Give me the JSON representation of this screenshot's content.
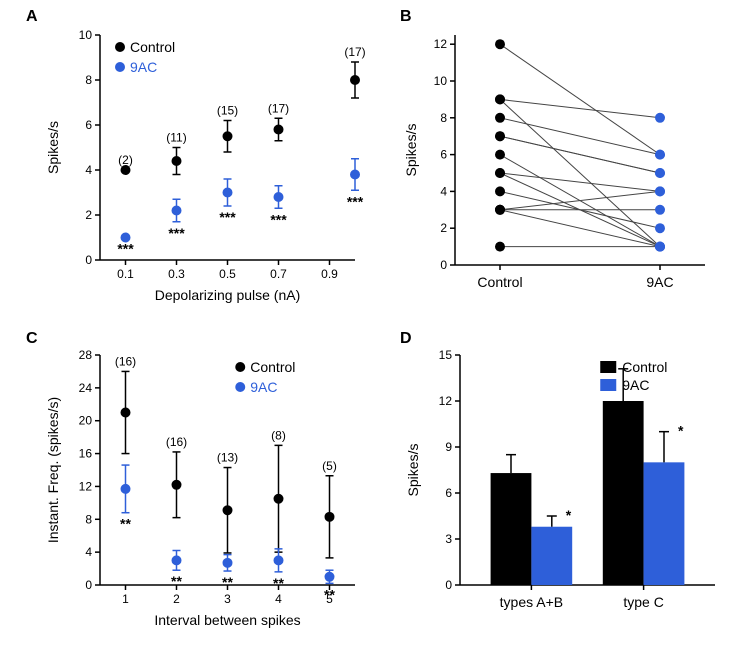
{
  "colors": {
    "control": "#000000",
    "treat": "#2e5fd9",
    "bg": "#ffffff",
    "axis": "#000000",
    "bar_control": "#000000",
    "bar_treat": "#2e5fd9",
    "line_gray": "#444444"
  },
  "legend": {
    "control": "Control",
    "treat": "9AC"
  },
  "panelA": {
    "label": "A",
    "type": "scatter-errorbar",
    "xlabel": "Depolarizing pulse (nA)",
    "ylabel": "Spikes/s",
    "xticks": [
      0.1,
      0.3,
      0.5,
      0.7,
      0.9
    ],
    "yticks": [
      0,
      2,
      4,
      6,
      8,
      10
    ],
    "ylim": [
      0,
      10
    ],
    "xlim": [
      0.0,
      1.0
    ],
    "series": {
      "control": {
        "x": [
          0.1,
          0.3,
          0.5,
          0.7,
          1.0
        ],
        "y": [
          4.0,
          4.4,
          5.5,
          5.8,
          8.0
        ],
        "yerr": [
          0.0,
          0.6,
          0.7,
          0.5,
          0.8
        ],
        "n": [
          "(2)",
          "(11)",
          "(15)",
          "(17)",
          "(17)"
        ]
      },
      "treat": {
        "x": [
          0.1,
          0.3,
          0.5,
          0.7,
          1.0
        ],
        "y": [
          1.0,
          2.2,
          3.0,
          2.8,
          3.8
        ],
        "yerr": [
          0.0,
          0.5,
          0.6,
          0.5,
          0.7
        ],
        "sig": [
          "***",
          "***",
          "***",
          "***",
          "***"
        ]
      }
    },
    "marker_size": 5,
    "err_cap": 4
  },
  "panelB": {
    "label": "B",
    "type": "paired-lines",
    "ylabel": "Spikes/s",
    "xcats": [
      "Control",
      "9AC"
    ],
    "yticks": [
      0,
      2,
      4,
      6,
      8,
      10,
      12
    ],
    "ylim": [
      0,
      12.5
    ],
    "pairs": [
      [
        12,
        6
      ],
      [
        9,
        8
      ],
      [
        9,
        1
      ],
      [
        8,
        6
      ],
      [
        7,
        5
      ],
      [
        7,
        5
      ],
      [
        6,
        1
      ],
      [
        5,
        4
      ],
      [
        5,
        1
      ],
      [
        4,
        2
      ],
      [
        3,
        4
      ],
      [
        3,
        3
      ],
      [
        3,
        1
      ],
      [
        1,
        1
      ]
    ],
    "marker_size": 5
  },
  "panelC": {
    "label": "C",
    "type": "scatter-errorbar",
    "xlabel": "Interval between spikes",
    "ylabel": "Instant. Freq. (spikes/s)",
    "xticks": [
      1,
      2,
      3,
      4,
      5
    ],
    "yticks": [
      0,
      4,
      8,
      12,
      16,
      20,
      24,
      28
    ],
    "ylim": [
      0,
      28
    ],
    "xlim": [
      0.5,
      5.5
    ],
    "series": {
      "control": {
        "x": [
          1,
          2,
          3,
          4,
          5
        ],
        "y": [
          21,
          12.2,
          9.1,
          10.5,
          8.3
        ],
        "yerr": [
          5.0,
          4.0,
          5.2,
          6.5,
          5.0
        ],
        "n": [
          "(16)",
          "(16)",
          "(13)",
          "(8)",
          "(5)"
        ]
      },
      "treat": {
        "x": [
          1,
          2,
          3,
          4,
          5
        ],
        "y": [
          11.7,
          3.0,
          2.7,
          3.0,
          1.0
        ],
        "yerr": [
          2.9,
          1.2,
          1.0,
          1.4,
          0.8
        ],
        "sig": [
          "**",
          "**",
          "**",
          "**",
          "**"
        ]
      }
    },
    "marker_size": 5,
    "err_cap": 4
  },
  "panelD": {
    "label": "D",
    "type": "bar",
    "ylabel": "Spikes/s",
    "groups": [
      "types A+B",
      "type C"
    ],
    "yticks": [
      0,
      3,
      6,
      9,
      12,
      15
    ],
    "ylim": [
      0,
      15
    ],
    "bars": {
      "control": {
        "values": [
          7.3,
          12.0
        ],
        "err": [
          1.2,
          2.1
        ]
      },
      "treat": {
        "values": [
          3.8,
          8.0
        ],
        "err": [
          0.7,
          2.0
        ],
        "sig": [
          "*",
          "*"
        ]
      }
    },
    "bar_width": 0.35,
    "gap": 0.0
  }
}
